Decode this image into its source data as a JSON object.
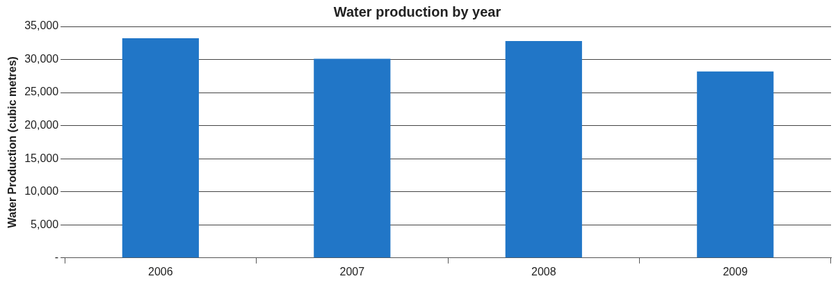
{
  "chart_data": {
    "type": "bar",
    "title": "Water production by year",
    "ylabel": "Water Production (cubic metres)",
    "categories": [
      "2006",
      "2007",
      "2008",
      "2009"
    ],
    "values": [
      33200,
      30100,
      32800,
      28200
    ],
    "color": "#2176c7",
    "ylim": [
      0,
      35000
    ],
    "yticks": [
      {
        "value": 0,
        "label": "-"
      },
      {
        "value": 5000,
        "label": "5,000"
      },
      {
        "value": 10000,
        "label": "10,000"
      },
      {
        "value": 15000,
        "label": "15,000"
      },
      {
        "value": 20000,
        "label": "20,000"
      },
      {
        "value": 25000,
        "label": "25,000"
      },
      {
        "value": 30000,
        "label": "30,000"
      },
      {
        "value": 35000,
        "label": "35,000"
      }
    ],
    "grid": "y",
    "legend": false
  }
}
